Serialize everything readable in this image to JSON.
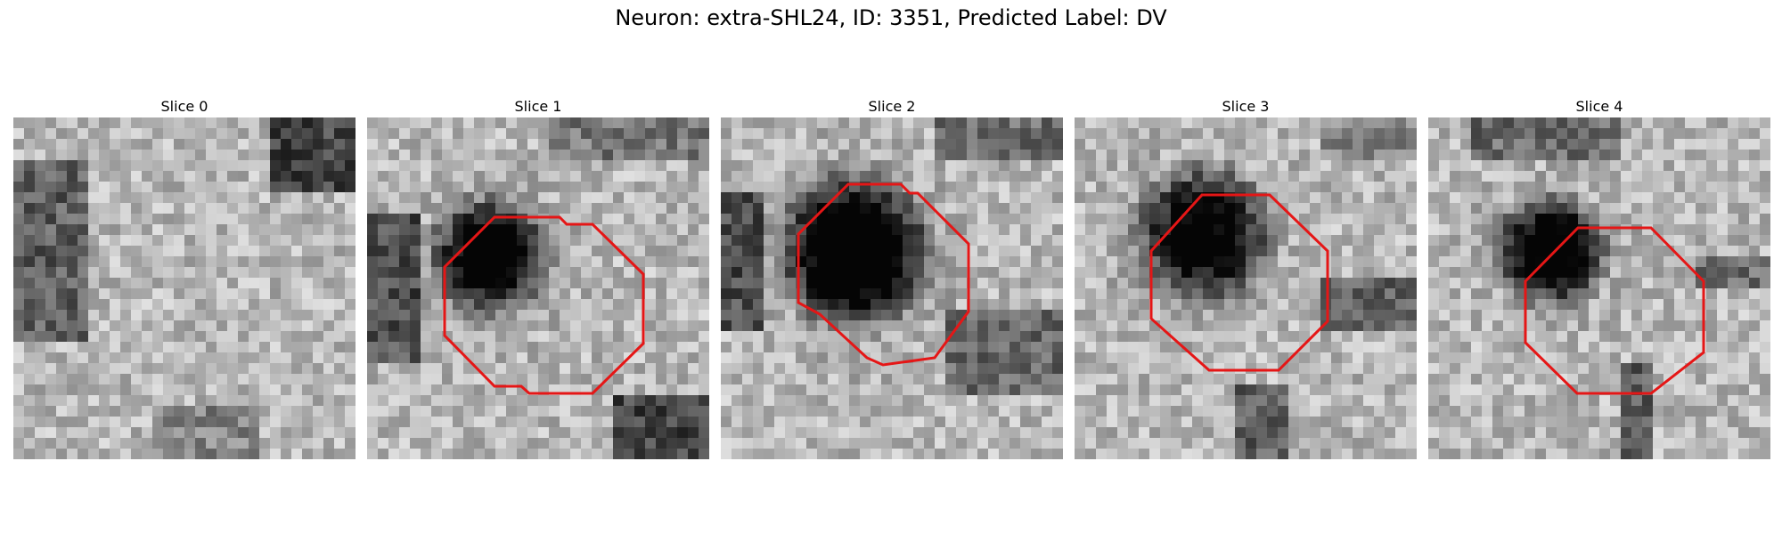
{
  "figure": {
    "title": "Neuron: extra-SHL24, ID: 3351, Predicted Label: DV"
  },
  "panels": [
    {
      "title": "Slice 0",
      "seed": 11,
      "blob_darkness": 0.0,
      "dark_corners": "tr-tl",
      "has_contour": false
    },
    {
      "title": "Slice 1",
      "seed": 23,
      "blob_darkness": 0.85,
      "dark_corners": "left-br",
      "has_contour": true
    },
    {
      "title": "Slice 2",
      "seed": 37,
      "blob_darkness": 0.95,
      "dark_corners": "left-top",
      "has_contour": true
    },
    {
      "title": "Slice 3",
      "seed": 51,
      "blob_darkness": 0.8,
      "dark_corners": "right-band",
      "has_contour": true
    },
    {
      "title": "Slice 4",
      "seed": 67,
      "blob_darkness": 0.85,
      "dark_corners": "top-right",
      "has_contour": true
    }
  ],
  "colors": {
    "contour": "#e51616"
  }
}
